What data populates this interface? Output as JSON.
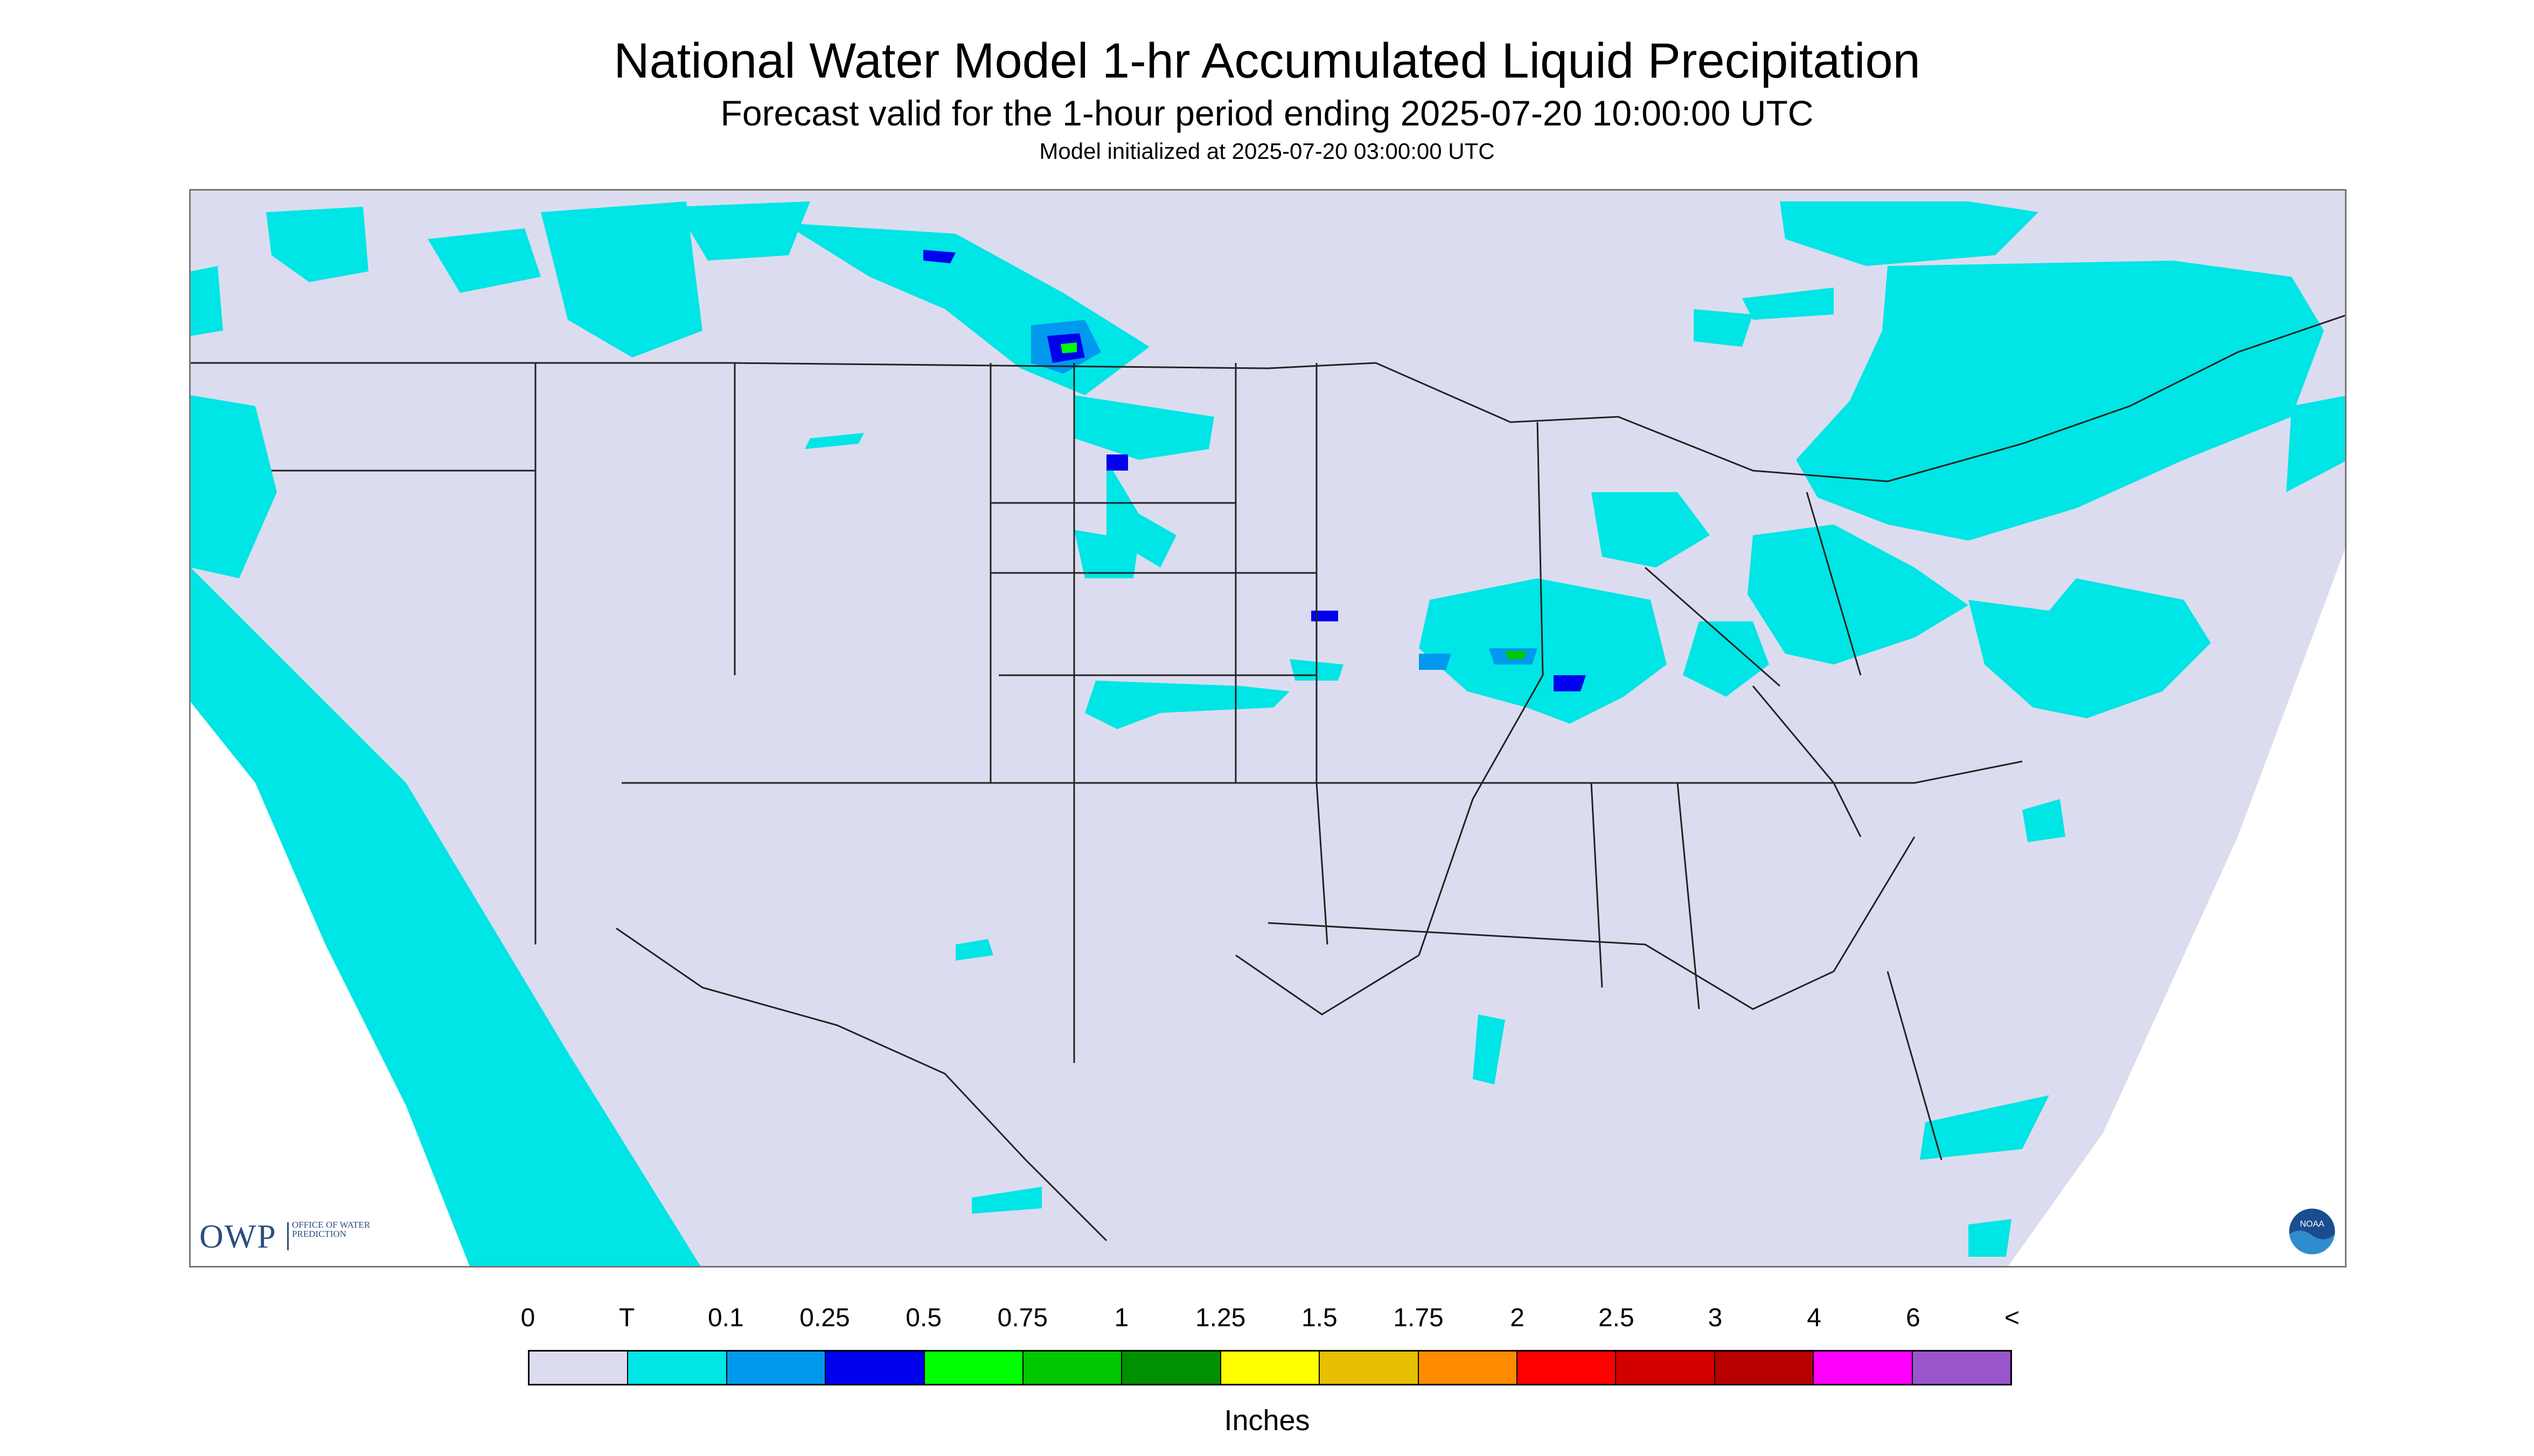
{
  "header": {
    "title": "National Water Model 1-hr Accumulated Liquid Precipitation",
    "subtitle": "Forecast valid for the 1-hour period ending 2025-07-20 10:00:00 UTC",
    "init": "Model initialized at 2025-07-20 03:00:00 UTC"
  },
  "logos": {
    "owp_big": "OWP",
    "owp_small": "OFFICE OF WATER PREDICTION",
    "noaa": "NOAA"
  },
  "legend": {
    "labels": [
      "0",
      "T",
      "0.1",
      "0.25",
      "0.5",
      "0.75",
      "1",
      "1.25",
      "1.5",
      "1.75",
      "2",
      "2.5",
      "3",
      "4",
      "6",
      "<"
    ],
    "colors": [
      "#dcdcf0",
      "#00e5e5",
      "#0099ee",
      "#0000ee",
      "#00ff00",
      "#00c800",
      "#009000",
      "#ffff00",
      "#e6c000",
      "#ff8c00",
      "#ff0000",
      "#d20000",
      "#b80000",
      "#ff00ff",
      "#9955cc"
    ],
    "units": "Inches"
  },
  "map": {
    "background_color": "#dcdcf0",
    "light_precip_color": "#00e5e5",
    "line_color": "#222222"
  }
}
